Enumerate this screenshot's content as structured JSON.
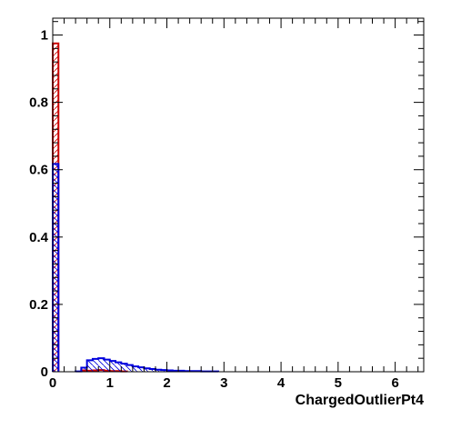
{
  "chart_data": {
    "type": "bar",
    "xlabel": "ChargedOutlierPt4",
    "ylabel": "",
    "xlim": [
      0,
      6.5
    ],
    "ylim": [
      0,
      1.05
    ],
    "x_ticks": [
      "0",
      "1",
      "2",
      "3",
      "4",
      "5",
      "6"
    ],
    "y_ticks": [
      "0",
      "0.2",
      "0.4",
      "0.6",
      "0.8",
      "1"
    ],
    "bin_width": 0.1,
    "grid": false,
    "legend": "none",
    "series": [
      {
        "color": "#cc0000",
        "hatch": "diagonal-right",
        "bins": [
          {
            "x0": 0.0,
            "value": 0.975
          },
          {
            "x0": 0.5,
            "value": 0.004
          },
          {
            "x0": 0.6,
            "value": 0.003
          },
          {
            "x0": 0.7,
            "value": 0.004
          },
          {
            "x0": 0.8,
            "value": 0.005
          },
          {
            "x0": 0.9,
            "value": 0.003
          },
          {
            "x0": 1.0,
            "value": 0.002
          },
          {
            "x0": 1.1,
            "value": 0.002
          },
          {
            "x0": 1.2,
            "value": 0.001
          }
        ]
      },
      {
        "color": "#0000dd",
        "hatch": "diagonal-left",
        "bins": [
          {
            "x0": 0.0,
            "value": 0.617
          },
          {
            "x0": 0.4,
            "value": 0.001
          },
          {
            "x0": 0.5,
            "value": 0.012
          },
          {
            "x0": 0.6,
            "value": 0.034
          },
          {
            "x0": 0.7,
            "value": 0.038
          },
          {
            "x0": 0.8,
            "value": 0.04
          },
          {
            "x0": 0.9,
            "value": 0.036
          },
          {
            "x0": 1.0,
            "value": 0.032
          },
          {
            "x0": 1.1,
            "value": 0.028
          },
          {
            "x0": 1.2,
            "value": 0.024
          },
          {
            "x0": 1.3,
            "value": 0.02
          },
          {
            "x0": 1.4,
            "value": 0.016
          },
          {
            "x0": 1.5,
            "value": 0.013
          },
          {
            "x0": 1.6,
            "value": 0.01
          },
          {
            "x0": 1.7,
            "value": 0.008
          },
          {
            "x0": 1.8,
            "value": 0.006
          },
          {
            "x0": 1.9,
            "value": 0.005
          },
          {
            "x0": 2.0,
            "value": 0.004
          },
          {
            "x0": 2.1,
            "value": 0.003
          },
          {
            "x0": 2.2,
            "value": 0.003
          },
          {
            "x0": 2.3,
            "value": 0.002
          },
          {
            "x0": 2.4,
            "value": 0.002
          },
          {
            "x0": 2.5,
            "value": 0.002
          },
          {
            "x0": 2.6,
            "value": 0.001
          },
          {
            "x0": 2.7,
            "value": 0.001
          },
          {
            "x0": 2.8,
            "value": 0.001
          }
        ]
      }
    ]
  }
}
